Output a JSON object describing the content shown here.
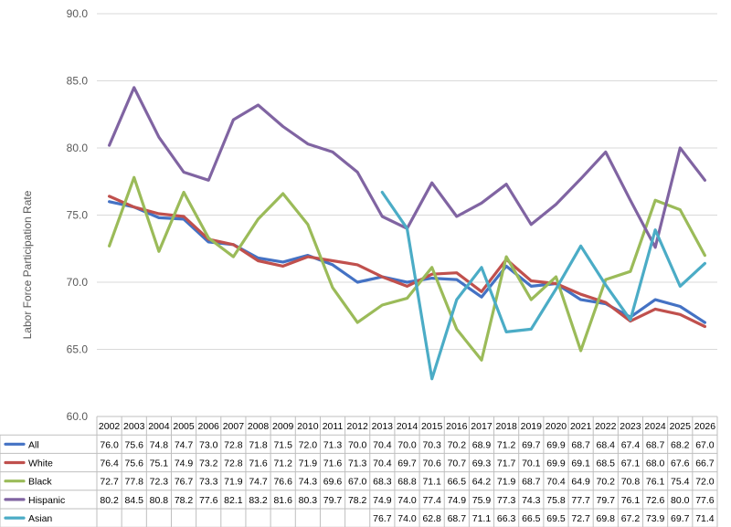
{
  "chart_data": {
    "type": "line",
    "title": "",
    "xlabel": "",
    "ylabel": "Labor Force Participation Rate",
    "ylim": [
      60,
      90
    ],
    "yticks": [
      "60.0",
      "65.0",
      "70.0",
      "75.0",
      "80.0",
      "85.0",
      "90.0"
    ],
    "grid": true,
    "legend_position": "data-table",
    "categories": [
      "2002",
      "2003",
      "2004",
      "2005",
      "2006",
      "2007",
      "2008",
      "2009",
      "2010",
      "2011",
      "2012",
      "2013",
      "2014",
      "2015",
      "2016",
      "2017",
      "2018",
      "2019",
      "2020",
      "2021",
      "2022",
      "2023",
      "2024",
      "2025",
      "2026"
    ],
    "series": [
      {
        "name": "All",
        "color": "#4472C4",
        "values": [
          76.0,
          75.6,
          74.8,
          74.7,
          73.0,
          72.8,
          71.8,
          71.5,
          72.0,
          71.3,
          70.0,
          70.4,
          70.0,
          70.3,
          70.2,
          68.9,
          71.2,
          69.7,
          69.9,
          68.7,
          68.4,
          67.4,
          68.7,
          68.2,
          67.0
        ],
        "labels": [
          "76.0",
          "75.6",
          "74.8",
          "74.7",
          "73.0",
          "72.8",
          "71.8",
          "71.5",
          "72.0",
          "71.3",
          "70.0",
          "70.4",
          "70.0",
          "70.3",
          "70.2",
          "68.9",
          "71.2",
          "69.7",
          "69.9",
          "68.7",
          "68.4",
          "67.4",
          "68.7",
          "68.2",
          "67.0"
        ]
      },
      {
        "name": "White",
        "color": "#C0504D",
        "values": [
          76.4,
          75.6,
          75.1,
          74.9,
          73.2,
          72.8,
          71.6,
          71.2,
          71.9,
          71.6,
          71.3,
          70.4,
          69.7,
          70.6,
          70.7,
          69.3,
          71.7,
          70.1,
          69.9,
          69.1,
          68.5,
          67.1,
          68.0,
          67.6,
          66.7
        ],
        "labels": [
          "76.4",
          "75.6",
          "75.1",
          "74.9",
          "73.2",
          "72.8",
          "71.6",
          "71.2",
          "71.9",
          "71.6",
          "71.3",
          "70.4",
          "69.7",
          "70.6",
          "70.7",
          "69.3",
          "71.7",
          "70.1",
          "69.9",
          "69.1",
          "68.5",
          "67.1",
          "68.0",
          "67.6",
          "66.7"
        ]
      },
      {
        "name": "Black",
        "color": "#9BBB59",
        "values": [
          72.7,
          77.8,
          72.3,
          76.7,
          73.3,
          71.9,
          74.7,
          76.6,
          74.3,
          69.6,
          67.0,
          68.3,
          68.8,
          71.1,
          66.5,
          64.2,
          71.9,
          68.7,
          70.4,
          64.9,
          70.2,
          70.8,
          76.1,
          75.4,
          72.0
        ],
        "labels": [
          "72.7",
          "77.8",
          "72.3",
          "76.7",
          "73.3",
          "71.9",
          "74.7",
          "76.6",
          "74.3",
          "69.6",
          "67.0",
          "68.3",
          "68.8",
          "71.1",
          "66.5",
          "64.2",
          "71.9",
          "68.7",
          "70.4",
          "64.9",
          "70.2",
          "70.8",
          "76.1",
          "75.4",
          "72.0"
        ]
      },
      {
        "name": "Hispanic",
        "color": "#8064A2",
        "values": [
          80.2,
          84.5,
          80.8,
          78.2,
          77.6,
          82.1,
          83.2,
          81.6,
          80.3,
          79.7,
          78.2,
          74.9,
          74.0,
          77.4,
          74.9,
          75.9,
          77.3,
          74.3,
          75.8,
          77.7,
          79.7,
          76.1,
          72.6,
          80.0,
          77.6
        ],
        "labels": [
          "80.2",
          "84.5",
          "80.8",
          "78.2",
          "77.6",
          "82.1",
          "83.2",
          "81.6",
          "80.3",
          "79.7",
          "78.2",
          "74.9",
          "74.0",
          "77.4",
          "74.9",
          "75.9",
          "77.3",
          "74.3",
          "75.8",
          "77.7",
          "79.7",
          "76.1",
          "72.6",
          "80.0",
          "77.6"
        ]
      },
      {
        "name": "Asian",
        "color": "#4BACC6",
        "values": [
          null,
          null,
          null,
          null,
          null,
          null,
          null,
          null,
          null,
          null,
          null,
          76.7,
          74.0,
          62.8,
          68.7,
          71.1,
          66.3,
          66.5,
          69.5,
          72.7,
          69.8,
          67.2,
          73.9,
          69.7,
          71.4
        ],
        "labels": [
          "",
          "",
          "",
          "",
          "",
          "",
          "",
          "",
          "",
          "",
          "",
          "76.7",
          "74.0",
          "62.8",
          "68.7",
          "71.1",
          "66.3",
          "66.5",
          "69.5",
          "72.7",
          "69.8",
          "67.2",
          "73.9",
          "69.7",
          "71.4"
        ]
      }
    ]
  }
}
